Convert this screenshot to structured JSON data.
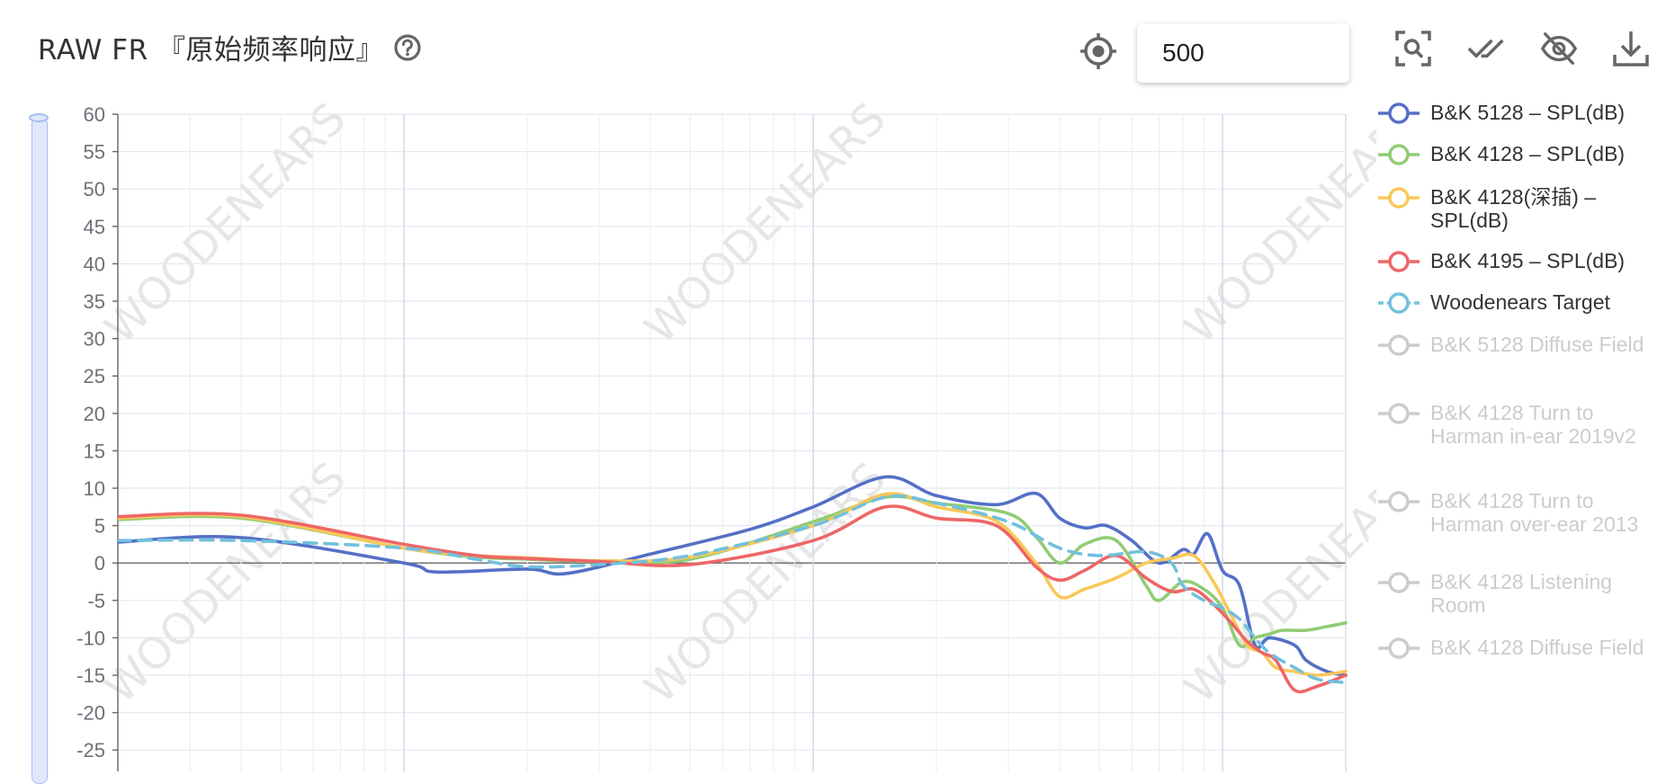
{
  "header": {
    "title": "RAW FR 『原始频率响应』"
  },
  "toolbar": {
    "frequency_value": "500"
  },
  "colors": {
    "b5128": "#5470c6",
    "b4128": "#91cc75",
    "b4128deep": "#fac858",
    "b4195": "#ee6666",
    "target": "#73c0de",
    "disabled": "#cccccc",
    "watermark": "#e6e6e6"
  },
  "watermark": "WOODENEARS",
  "legend": {
    "items": [
      {
        "label": "B&K 5128 – SPL(dB)",
        "color": "#5470c6",
        "enabled": true
      },
      {
        "label": "B&K 4128 – SPL(dB)",
        "color": "#91cc75",
        "enabled": true
      },
      {
        "label": "B&K 4128(深插) – SPL(dB)",
        "color": "#fac858",
        "enabled": true
      },
      {
        "label": "B&K 4195 – SPL(dB)",
        "color": "#ee6666",
        "enabled": true
      },
      {
        "label": "Woodenears Target",
        "color": "#73c0de",
        "enabled": true,
        "dashed": true
      },
      {
        "label": "B&K 5128 Diffuse Field",
        "color": "#cccccc",
        "enabled": false
      },
      {
        "label": "B&K 4128 Turn to Harman in-ear 2019v2",
        "color": "#cccccc",
        "enabled": false
      },
      {
        "label": "B&K 4128 Turn to Harman over-ear 2013",
        "color": "#cccccc",
        "enabled": false
      },
      {
        "label": "B&K 4128 Listening Room",
        "color": "#cccccc",
        "enabled": false
      },
      {
        "label": "B&K 4128 Diffuse Field",
        "color": "#cccccc",
        "enabled": false
      }
    ]
  },
  "chart_data": {
    "type": "line",
    "x_scale": "log",
    "ylim": [
      -30,
      60
    ],
    "y_ticks": [
      60,
      55,
      50,
      45,
      40,
      35,
      30,
      25,
      20,
      15,
      10,
      5,
      0,
      -5,
      -10,
      -15,
      -20,
      -25
    ],
    "grid": true,
    "legend_placement": "right",
    "series": [
      {
        "name": "B&K 5128 – SPL(dB)",
        "color": "#5470c6",
        "x": [
          20,
          40,
          100,
          120,
          200,
          250,
          400,
          700,
          1000,
          1500,
          2000,
          2800,
          3500,
          4000,
          4600,
          5200,
          6000,
          7000,
          8000,
          8500,
          9200,
          10000,
          11000,
          12000,
          13000,
          15000,
          16000,
          18000,
          20000
        ],
        "y": [
          2.8,
          3.4,
          0,
          -1.2,
          -0.8,
          -1.4,
          1.2,
          4.5,
          7.5,
          11.5,
          9,
          7.8,
          9.3,
          6,
          4.7,
          5,
          3,
          0,
          1.8,
          1.2,
          3.9,
          -1,
          -3,
          -11,
          -10,
          -11,
          -13,
          -14.5,
          -15
        ]
      },
      {
        "name": "B&K 4128 – SPL(dB)",
        "color": "#91cc75",
        "x": [
          20,
          40,
          100,
          150,
          200,
          300,
          500,
          1000,
          1500,
          2000,
          3000,
          3500,
          4000,
          4600,
          5500,
          6500,
          7000,
          8000,
          9000,
          10000,
          11000,
          12000,
          13000,
          14000,
          16000,
          18000,
          20000
        ],
        "y": [
          5.8,
          6,
          2,
          0.8,
          0.5,
          0.2,
          0.5,
          5.5,
          8.8,
          8,
          6.6,
          3.5,
          0,
          2.5,
          3,
          -3,
          -5,
          -2.5,
          -3.5,
          -6,
          -11,
          -10,
          -9.5,
          -9,
          -9,
          -8.5,
          -8
        ]
      },
      {
        "name": "B&K 4128(深插) – SPL(dB)",
        "color": "#fac858",
        "x": [
          20,
          40,
          100,
          150,
          200,
          300,
          500,
          1000,
          1500,
          2000,
          2800,
          3500,
          4000,
          4600,
          5500,
          6500,
          7500,
          8500,
          9500,
          10500,
          11500,
          12500,
          13500,
          15000,
          17000,
          20000
        ],
        "y": [
          6,
          6.2,
          2,
          1,
          0.7,
          0.3,
          0.8,
          5,
          9.2,
          7.5,
          5.6,
          0,
          -4.5,
          -3.5,
          -2,
          0,
          0.6,
          1,
          -2.5,
          -7,
          -11,
          -12,
          -14,
          -14.5,
          -15,
          -14.5
        ]
      },
      {
        "name": "B&K 4195 – SPL(dB)",
        "color": "#ee6666",
        "x": [
          20,
          40,
          100,
          150,
          200,
          300,
          500,
          1000,
          1500,
          2000,
          2800,
          3500,
          4000,
          4600,
          5500,
          6500,
          7500,
          8500,
          9500,
          10500,
          11500,
          12500,
          13500,
          15000,
          17000,
          20000
        ],
        "y": [
          6.2,
          6.4,
          2.5,
          1,
          0.6,
          0.2,
          -0.2,
          3,
          7.5,
          6,
          5,
          -0.5,
          -2.3,
          -1,
          1,
          -2,
          -3.8,
          -3.5,
          -5.5,
          -8,
          -10.5,
          -12,
          -13,
          -17,
          -16.5,
          -15
        ]
      },
      {
        "name": "Woodenears Target",
        "color": "#73c0de",
        "dashed": true,
        "x": [
          20,
          40,
          100,
          150,
          200,
          300,
          500,
          1000,
          1500,
          2000,
          3000,
          4000,
          5000,
          6500,
          7500,
          8000,
          9000,
          10000,
          11000,
          12000,
          13000,
          15000,
          17000,
          20000
        ],
        "y": [
          3,
          3,
          2,
          0.5,
          -0.5,
          -0.2,
          1,
          5,
          8.8,
          8,
          5.5,
          2,
          1,
          1.5,
          0,
          -3,
          -5,
          -6,
          -7.5,
          -10,
          -12,
          -14,
          -15.5,
          -16
        ]
      }
    ]
  }
}
